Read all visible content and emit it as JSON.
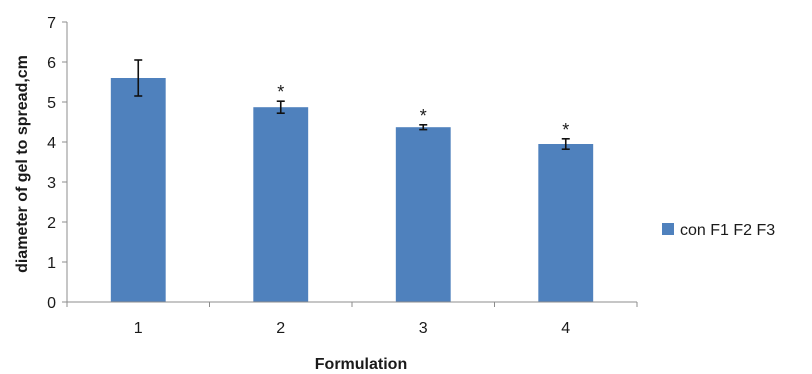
{
  "chart_data": {
    "type": "bar",
    "title": "",
    "xlabel": "Formulation",
    "ylabel": "diameter of gel to spread,cm",
    "categories": [
      "1",
      "2",
      "3",
      "4"
    ],
    "series": [
      {
        "name": "con F1 F2 F3",
        "values": [
          5.6,
          4.87,
          4.37,
          3.95
        ],
        "errors": [
          0.45,
          0.15,
          0.06,
          0.13
        ],
        "color": "#4f81bd"
      }
    ],
    "significance_marks": [
      "",
      "*",
      "*",
      "*"
    ],
    "ylim": [
      0,
      7
    ],
    "yticks": [
      0,
      1,
      2,
      3,
      4,
      5,
      6,
      7
    ],
    "grid": false,
    "legend_position": "right"
  }
}
